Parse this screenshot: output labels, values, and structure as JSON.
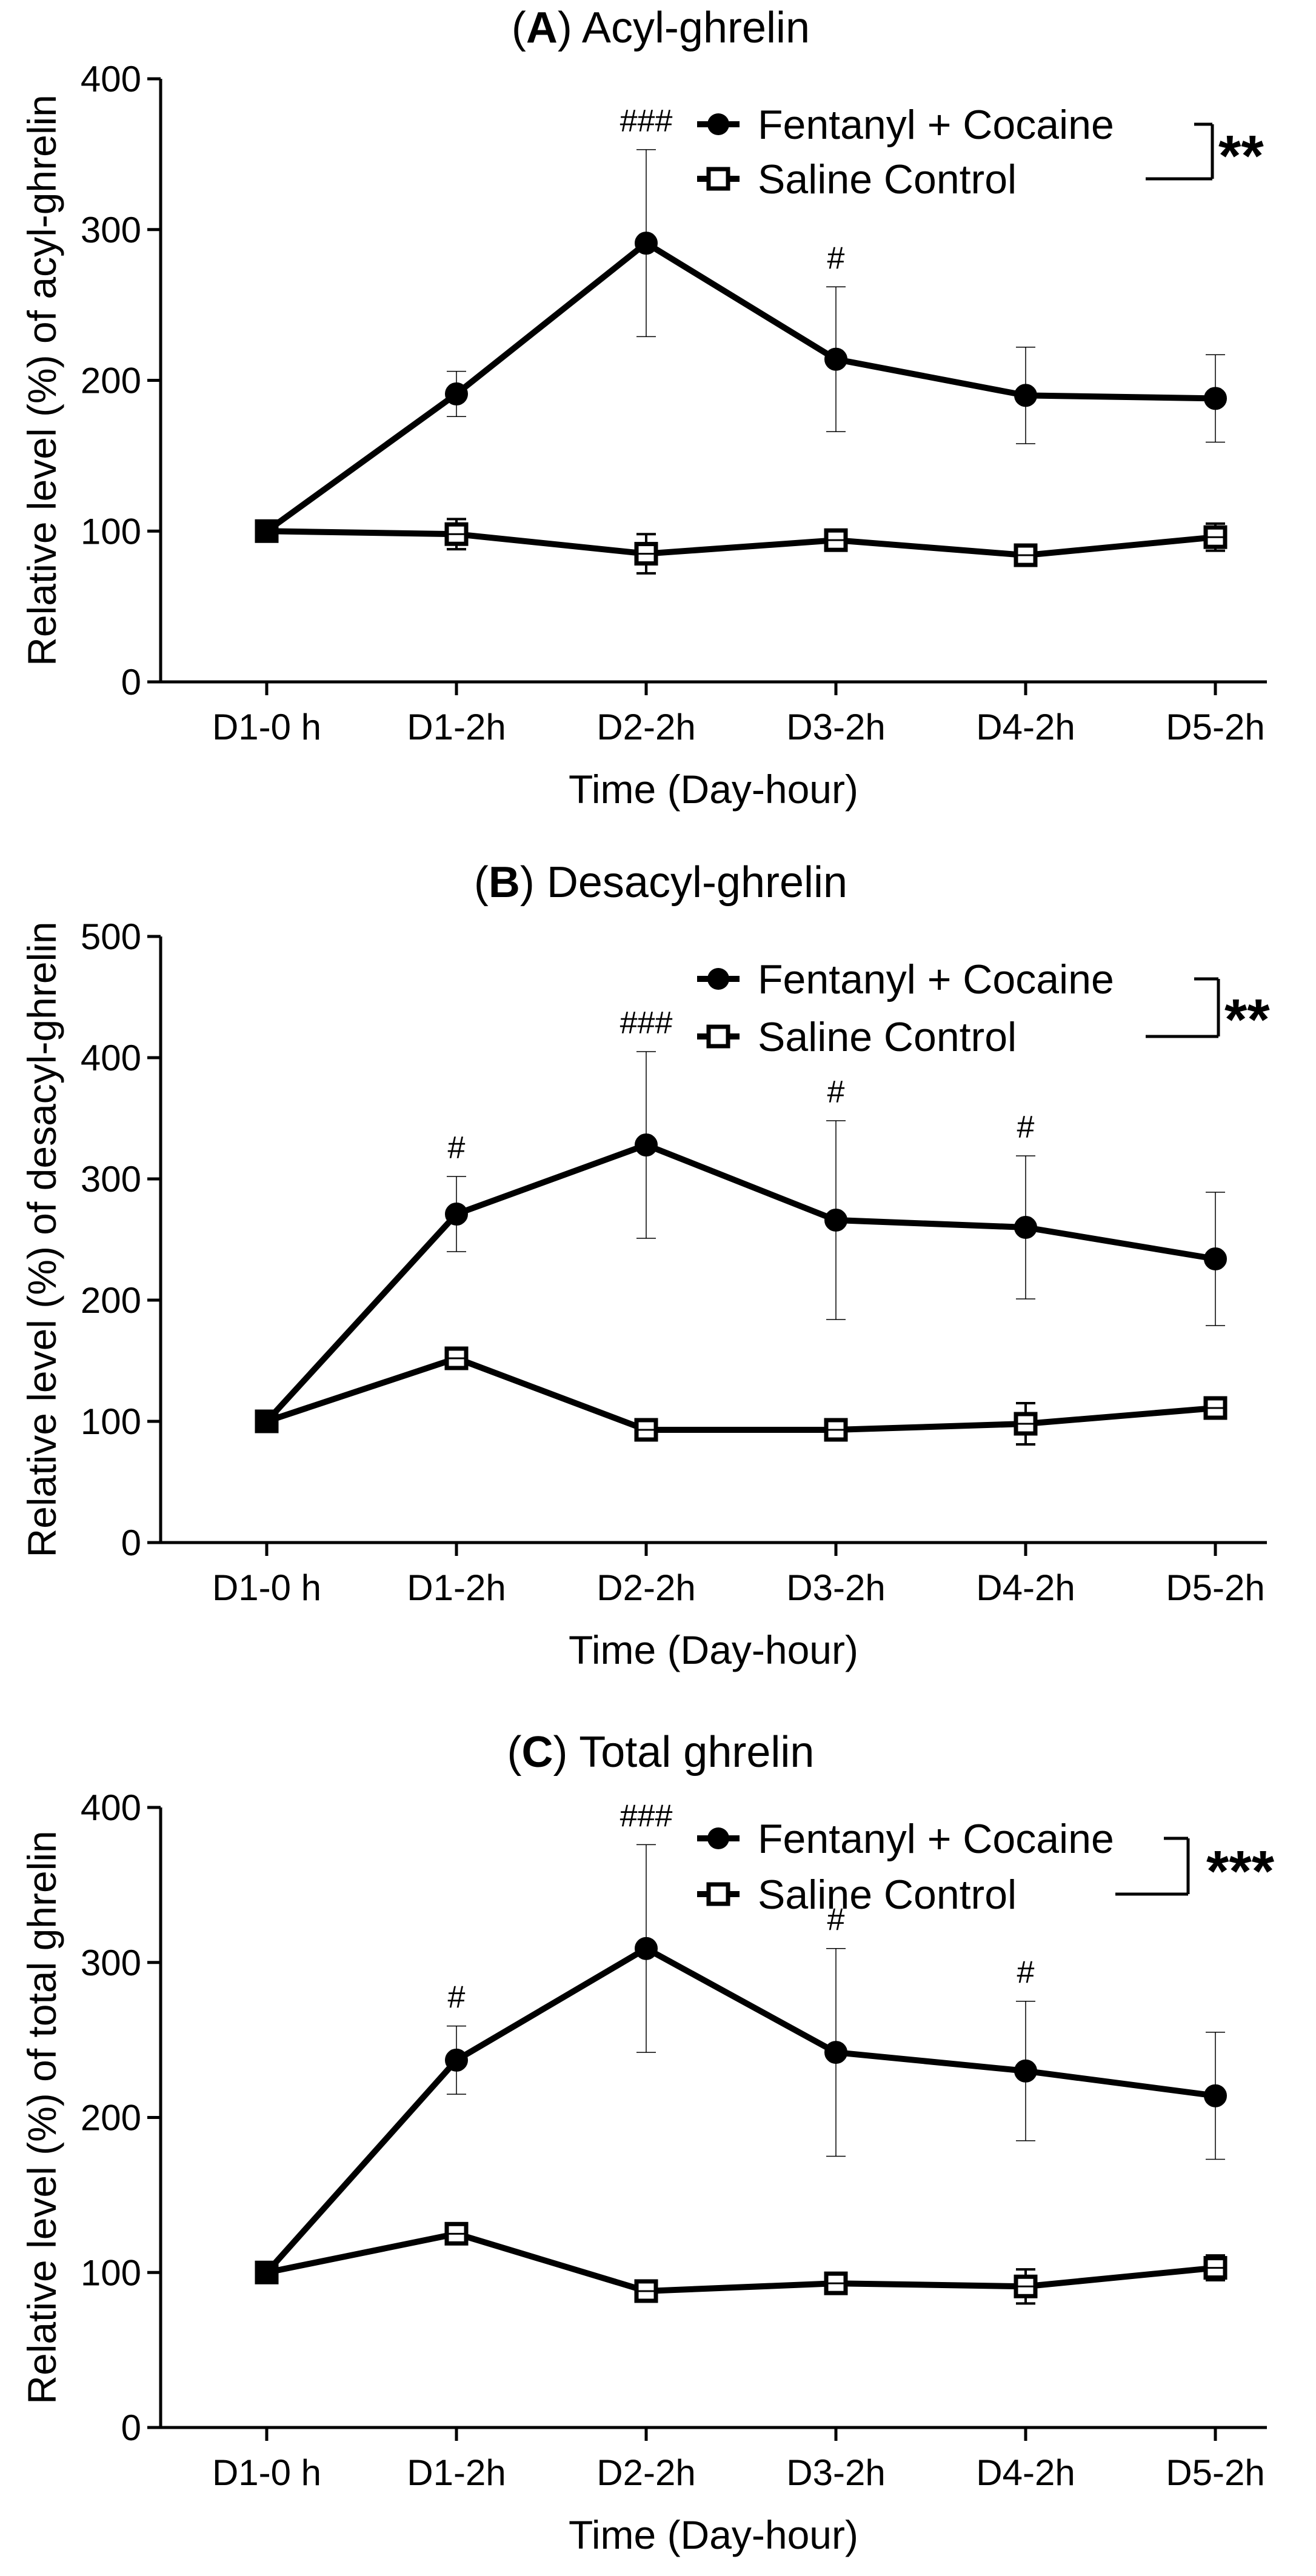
{
  "colors": {
    "line": "#000000",
    "marker_fill": "#000000",
    "open_marker_fill": "#ffffff",
    "background": "#ffffff"
  },
  "chart_data": [
    {
      "type": "line",
      "letter": "A",
      "title": "Acyl-ghrelin",
      "xlabel": "Time (Day-hour)",
      "ylabel": "Relative level (%) of acyl-ghrelin",
      "categories": [
        "D1-0 h",
        "D1-2h",
        "D2-2h",
        "D3-2h",
        "D4-2h",
        "D5-2h"
      ],
      "ylim": [
        0,
        400
      ],
      "yticks": [
        0,
        100,
        200,
        300,
        400
      ],
      "significance": "**",
      "series": [
        {
          "name": "Fentanyl + Cocaine",
          "marker": "filled-circle",
          "values": [
            100,
            191,
            291,
            214,
            190,
            188
          ],
          "errors": [
            0,
            15,
            62,
            48,
            32,
            29
          ]
        },
        {
          "name": "Saline Control",
          "marker": "open-square",
          "values": [
            100,
            98,
            85,
            94,
            84,
            96
          ],
          "errors": [
            0,
            10,
            13,
            6,
            5,
            9
          ]
        }
      ],
      "annotations": [
        {
          "category": "D2-2h",
          "text": "###"
        },
        {
          "category": "D3-2h",
          "text": "#"
        }
      ]
    },
    {
      "type": "line",
      "letter": "B",
      "title": "Desacyl-ghrelin",
      "xlabel": "Time (Day-hour)",
      "ylabel": "Relative level (%) of desacyl-ghrelin",
      "categories": [
        "D1-0 h",
        "D1-2h",
        "D2-2h",
        "D3-2h",
        "D4-2h",
        "D5-2h"
      ],
      "ylim": [
        0,
        500
      ],
      "yticks": [
        0,
        100,
        200,
        300,
        400,
        500
      ],
      "significance": "**",
      "series": [
        {
          "name": "Fentanyl + Cocaine",
          "marker": "filled-circle",
          "values": [
            100,
            271,
            328,
            266,
            260,
            234
          ],
          "errors": [
            0,
            31,
            77,
            82,
            59,
            55
          ]
        },
        {
          "name": "Saline Control",
          "marker": "open-square",
          "values": [
            100,
            152,
            93,
            93,
            98,
            111
          ],
          "errors": [
            0,
            8,
            4,
            5,
            17,
            7
          ]
        }
      ],
      "annotations": [
        {
          "category": "D1-2h",
          "text": "#"
        },
        {
          "category": "D2-2h",
          "text": "###"
        },
        {
          "category": "D3-2h",
          "text": "#"
        },
        {
          "category": "D4-2h",
          "text": "#"
        }
      ]
    },
    {
      "type": "line",
      "letter": "C",
      "title": "Total ghrelin",
      "xlabel": "Time (Day-hour)",
      "ylabel": "Relative level (%) of total ghrelin",
      "categories": [
        "D1-0 h",
        "D1-2h",
        "D2-2h",
        "D3-2h",
        "D4-2h",
        "D5-2h"
      ],
      "ylim": [
        0,
        400
      ],
      "yticks": [
        0,
        100,
        200,
        300,
        400
      ],
      "significance": "***",
      "series": [
        {
          "name": "Fentanyl + Cocaine",
          "marker": "filled-circle",
          "values": [
            100,
            237,
            309,
            242,
            230,
            214
          ],
          "errors": [
            0,
            22,
            67,
            67,
            45,
            41
          ]
        },
        {
          "name": "Saline Control",
          "marker": "open-square",
          "values": [
            100,
            125,
            88,
            93,
            91,
            103
          ],
          "errors": [
            0,
            5,
            5,
            5,
            11,
            8
          ]
        }
      ],
      "annotations": [
        {
          "category": "D1-2h",
          "text": "#"
        },
        {
          "category": "D2-2h",
          "text": "###"
        },
        {
          "category": "D3-2h",
          "text": "#"
        },
        {
          "category": "D4-2h",
          "text": "#"
        }
      ]
    }
  ]
}
